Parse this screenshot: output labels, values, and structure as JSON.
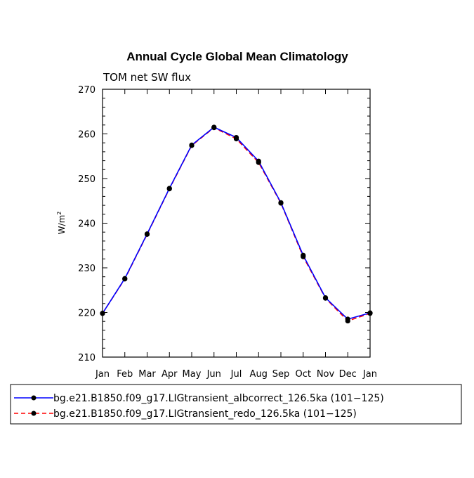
{
  "chart_data": {
    "type": "line",
    "title": "Annual Cycle Global Mean Climatology",
    "subtitle": "TOM net SW flux",
    "xlabel": "",
    "ylabel": "W/m",
    "ylabel_sup": "2",
    "categories": [
      "Jan",
      "Feb",
      "Mar",
      "Apr",
      "May",
      "Jun",
      "Jul",
      "Aug",
      "Sep",
      "Oct",
      "Nov",
      "Dec",
      "Jan"
    ],
    "ylim": [
      210,
      270
    ],
    "yticks": [
      210,
      220,
      230,
      240,
      250,
      260,
      270
    ],
    "series": [
      {
        "name": "bg.e21.B1850.f09_g17.LIGtransient_albcorrect_126.5ka (101−125)",
        "color": "#0000ff",
        "dash": "solid",
        "marker_color": "#000000",
        "values": [
          219.8,
          227.6,
          237.6,
          247.8,
          257.5,
          261.5,
          259.2,
          253.9,
          244.6,
          232.8,
          223.3,
          218.5,
          219.9
        ]
      },
      {
        "name": "bg.e21.B1850.f09_g17.LIGtransient_redo_126.5ka (101−125)",
        "color": "#ff0000",
        "dash": "dashed",
        "marker_color": "#000000",
        "values": [
          219.8,
          227.5,
          237.5,
          247.7,
          257.4,
          261.4,
          258.9,
          253.6,
          244.5,
          232.5,
          223.2,
          218.1,
          219.8
        ]
      }
    ]
  }
}
